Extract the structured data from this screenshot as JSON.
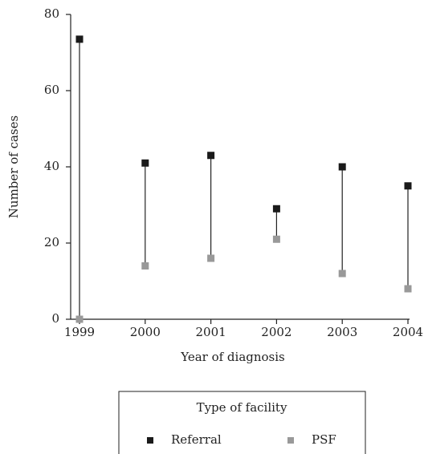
{
  "chart_data": {
    "type": "dumbbell",
    "x_label": "Year of diagnosis",
    "y_label": "Number of cases",
    "categories": [
      "1999",
      "2000",
      "2001",
      "2002",
      "2003",
      "2004"
    ],
    "series": [
      {
        "name": "Referral",
        "color": "#1a1a1a",
        "values": [
          73.5,
          41,
          43,
          29,
          40,
          35
        ]
      },
      {
        "name": "PSF",
        "color": "#999999",
        "values": [
          0,
          14,
          16,
          21,
          12,
          8
        ]
      }
    ],
    "ylim": [
      0,
      80
    ],
    "yticks": [
      0,
      20,
      40,
      60,
      80
    ],
    "legend_title": "Type of facility"
  }
}
